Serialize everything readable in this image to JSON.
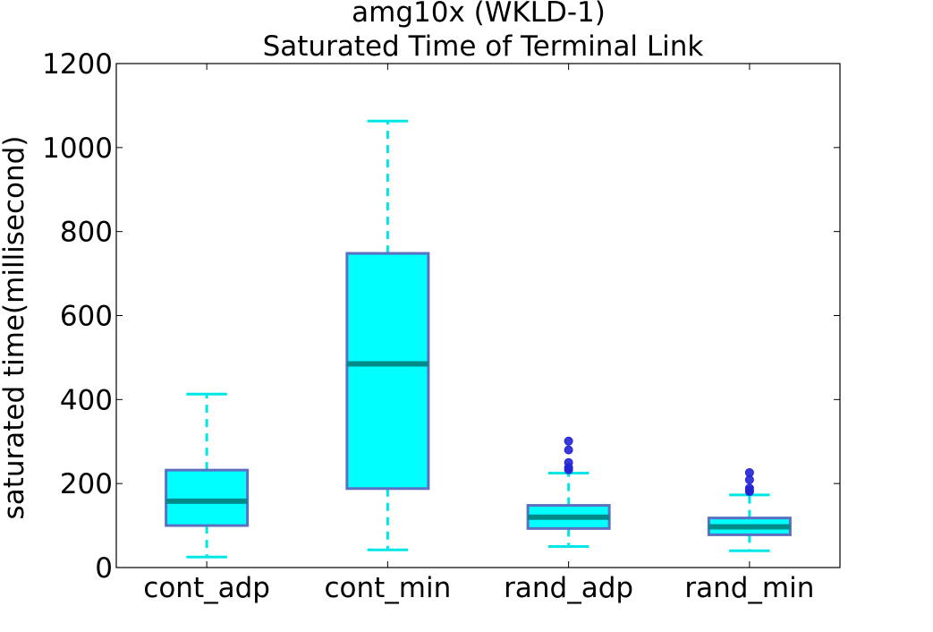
{
  "chart_data": {
    "type": "box",
    "title": "amg10x  (WKLD-1)",
    "subtitle": "Saturated Time of Terminal Link",
    "xlabel": "",
    "ylabel": "saturated time(millisecond)",
    "ylim": [
      0,
      1200
    ],
    "yticks": [
      0,
      200,
      400,
      600,
      800,
      1000,
      1200
    ],
    "grid": false,
    "categories": [
      "cont_adp",
      "cont_min",
      "rand_adp",
      "rand_min"
    ],
    "boxes": [
      {
        "name": "cont_adp",
        "whislo": 25,
        "q1": 100,
        "med": 158,
        "q3": 232,
        "whishi": 413,
        "fliers": []
      },
      {
        "name": "cont_min",
        "whislo": 42,
        "q1": 188,
        "med": 485,
        "q3": 748,
        "whishi": 1063,
        "fliers": []
      },
      {
        "name": "rand_adp",
        "whislo": 50,
        "q1": 93,
        "med": 120,
        "q3": 148,
        "whishi": 225,
        "fliers": [
          233,
          238,
          250,
          280,
          301
        ]
      },
      {
        "name": "rand_min",
        "whislo": 40,
        "q1": 78,
        "med": 97,
        "q3": 118,
        "whishi": 173,
        "fliers": [
          181,
          184,
          189,
          209,
          226
        ]
      }
    ],
    "colors": {
      "box_fill": "#00ffff",
      "box_edge": "#5b70c0",
      "median": "#008b8b",
      "whisker": "#00e5e5",
      "flier": "#2323d6"
    }
  }
}
